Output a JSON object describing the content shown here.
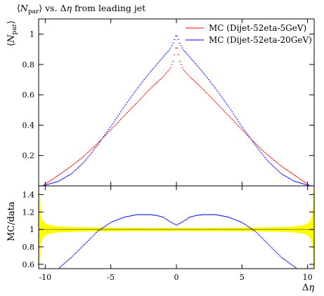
{
  "chart_data": [
    {
      "type": "scatter",
      "panel": "main",
      "title": "⟨N_par⟩ vs. Δη from leading jet",
      "ylabel": "⟨N_par⟩",
      "xlim": [
        -10.5,
        10.5
      ],
      "ylim": [
        0,
        1.1
      ],
      "x_ticks": [
        -10,
        -5,
        0,
        5,
        10
      ],
      "y_ticks": [
        0.2,
        0.4,
        0.6,
        0.8,
        1
      ],
      "y_tick_labels": [
        "0.2",
        "0.4",
        "0.6",
        "0.8",
        "1"
      ],
      "legend_position": "top-right",
      "series": [
        {
          "name": "MC (Dijet-52eta-5GeV)",
          "color": "#ff0000",
          "x": [
            -10.2,
            -9,
            -8,
            -7,
            -6,
            -5,
            -4,
            -3,
            -2,
            -1.5,
            -1,
            -0.5,
            -0.25,
            0,
            0.25,
            0.5,
            1,
            1.5,
            2,
            3,
            4,
            5,
            6,
            7,
            8,
            9,
            10.2
          ],
          "y": [
            0.0,
            0.07,
            0.13,
            0.2,
            0.28,
            0.37,
            0.46,
            0.55,
            0.64,
            0.68,
            0.72,
            0.77,
            0.82,
            0.93,
            0.82,
            0.77,
            0.72,
            0.68,
            0.64,
            0.55,
            0.46,
            0.37,
            0.28,
            0.2,
            0.13,
            0.07,
            0.0
          ]
        },
        {
          "name": "MC (Dijet-52eta-20GeV)",
          "color": "#0000ff",
          "x": [
            -10.2,
            -9,
            -8,
            -7,
            -6,
            -5,
            -4,
            -3,
            -2,
            -1.5,
            -1,
            -0.5,
            -0.25,
            0,
            0.25,
            0.5,
            1,
            1.5,
            2,
            3,
            4,
            5,
            6,
            7,
            8,
            9,
            10.2
          ],
          "y": [
            0.0,
            0.03,
            0.08,
            0.16,
            0.27,
            0.39,
            0.52,
            0.64,
            0.75,
            0.8,
            0.85,
            0.9,
            0.94,
            1.0,
            0.94,
            0.9,
            0.85,
            0.8,
            0.75,
            0.64,
            0.52,
            0.39,
            0.27,
            0.16,
            0.08,
            0.03,
            0.0
          ]
        }
      ]
    },
    {
      "type": "scatter",
      "panel": "ratio",
      "xlabel": "Δη",
      "ylabel": "MC/data",
      "xlim": [
        -10.5,
        10.5
      ],
      "ylim": [
        0.55,
        1.5
      ],
      "x_ticks": [
        -10,
        -5,
        0,
        5,
        10
      ],
      "x_tick_labels": [
        "-10",
        "-5",
        "0",
        "5",
        "10"
      ],
      "y_ticks": [
        0.6,
        0.8,
        1,
        1.2,
        1.4
      ],
      "y_tick_labels": [
        "0.6",
        "0.8",
        "1",
        "1.2",
        "1.4"
      ],
      "reference_line": 1.0,
      "band_color": "#ffff00",
      "line_color": "#999900",
      "series": [
        {
          "name": "MC (Dijet-52eta-20GeV)",
          "color": "#0000ff",
          "x": [
            -9,
            -8,
            -7,
            -6,
            -5,
            -4,
            -3,
            -2,
            -1.5,
            -1,
            -0.5,
            0,
            0.5,
            1,
            1.5,
            2,
            3,
            4,
            5,
            6,
            7,
            8,
            9.2
          ],
          "y": [
            0.55,
            0.68,
            0.83,
            0.98,
            1.08,
            1.14,
            1.17,
            1.17,
            1.16,
            1.14,
            1.09,
            1.05,
            1.09,
            1.14,
            1.16,
            1.17,
            1.17,
            1.14,
            1.08,
            0.98,
            0.83,
            0.68,
            0.55
          ]
        }
      ]
    }
  ]
}
